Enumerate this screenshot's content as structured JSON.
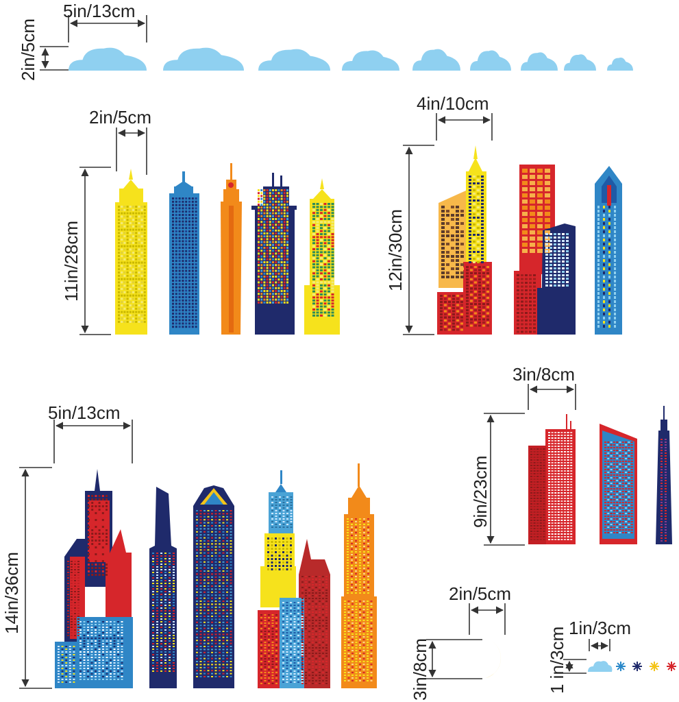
{
  "colors": {
    "cloud": "#8fd0f0",
    "yellow": "#f6e21c",
    "blue": "#2f86c6",
    "orange": "#f28a1a",
    "navy": "#1f2a6b",
    "red": "#d6262b",
    "window_light": "#cfe8ff",
    "moon": "#f4c419",
    "star_blue": "#2a88c9",
    "star_navy": "#1f2a6b",
    "star_yellow": "#f4c419",
    "star_red": "#d6262b"
  },
  "dimensions": {
    "clouds_width": "5in/13cm",
    "clouds_height": "2in/5cm",
    "set1_width": "2in/5cm",
    "set1_height": "11in/28cm",
    "set2_width": "4in/10cm",
    "set2_height": "12in/30cm",
    "set3_width": "3in/8cm",
    "set3_height": "9in/23cm",
    "set4_width": "5in/13cm",
    "set4_height": "14in/36cm",
    "moon_width": "2in/5cm",
    "moon_height": "3in/8cm",
    "stars_width": "1in/3cm",
    "stars_height": "1 in/3cm"
  }
}
